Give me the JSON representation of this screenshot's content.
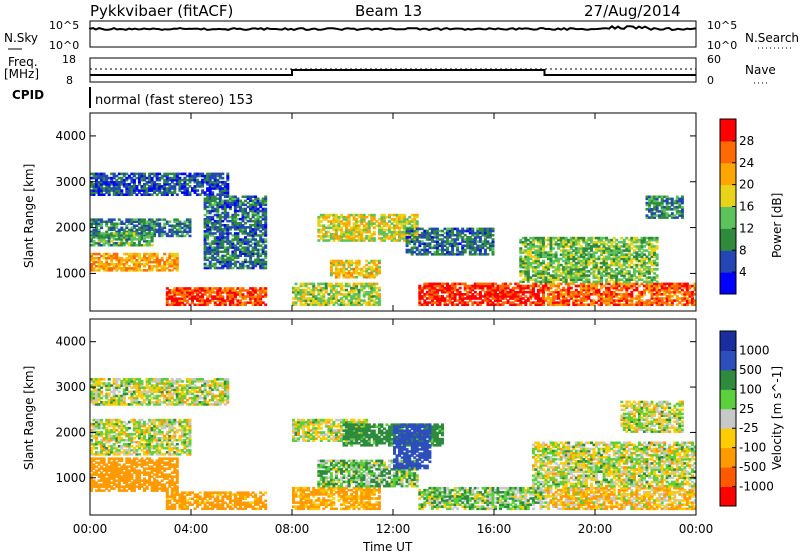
{
  "header": {
    "radar": "Pykkvibaer (fitACF)",
    "beam": "Beam 13",
    "date": "27/Aug/2014"
  },
  "top_panels": {
    "nsky_label": "N.Sky",
    "nsky_ticks": [
      "10^5",
      "10^0"
    ],
    "nsearch_label": "N.Search",
    "nsearch_ticks": [
      "10^5",
      "10^0"
    ],
    "freq_label": "Freq.",
    "freq_unit": "[MHz]",
    "freq_ticks": [
      "18",
      "8"
    ],
    "nave_label": "Nave",
    "nave_ticks": [
      "60",
      "0"
    ],
    "cpid_label": "CPID",
    "cpid_value": "normal (fast stereo) 153"
  },
  "colors": {
    "power": [
      "#0000ff",
      "#2246b4",
      "#2f8a3c",
      "#5cc35c",
      "#e8d21a",
      "#ffa500",
      "#ff6a00",
      "#ff0000"
    ],
    "velocity": [
      "#ff0000",
      "#ff5a00",
      "#ff9a00",
      "#ffcc00",
      "#c8c8c8",
      "#5cd03c",
      "#2e8b3e",
      "#2c4fbc",
      "#1a2ea0"
    ]
  },
  "chart_data": [
    {
      "type": "heatmap",
      "name": "Power panel",
      "xlabel": "Time UT",
      "ylabel": "Slant Range [km]",
      "xlim": [
        0,
        24
      ],
      "ylim": [
        180,
        4500
      ],
      "x_ticks": [
        "00:00",
        "04:00",
        "08:00",
        "12:00",
        "16:00",
        "20:00",
        "00:00"
      ],
      "y_ticks": [
        "1000",
        "2000",
        "3000",
        "4000"
      ],
      "colorbar": {
        "label": "Power [dB]",
        "ticks": [
          "4",
          "8",
          "12",
          "16",
          "20",
          "24",
          "28"
        ],
        "range": [
          0,
          32
        ]
      },
      "regions": [
        {
          "t": [
            0.0,
            5.5
          ],
          "r": [
            2700,
            3200
          ],
          "v": 6
        },
        {
          "t": [
            0.0,
            4.0
          ],
          "r": [
            1800,
            2200
          ],
          "v": 9
        },
        {
          "t": [
            0.0,
            3.5
          ],
          "r": [
            1050,
            1450
          ],
          "v": 22
        },
        {
          "t": [
            0.0,
            2.5
          ],
          "r": [
            1600,
            1900
          ],
          "v": 12
        },
        {
          "t": [
            3.0,
            7.0
          ],
          "r": [
            300,
            700
          ],
          "v": 28
        },
        {
          "t": [
            4.5,
            7.0
          ],
          "r": [
            1100,
            2700
          ],
          "v": 8
        },
        {
          "t": [
            8.0,
            11.5
          ],
          "r": [
            300,
            800
          ],
          "v": 16
        },
        {
          "t": [
            9.0,
            13.0
          ],
          "r": [
            1700,
            2300
          ],
          "v": 18
        },
        {
          "t": [
            9.5,
            11.5
          ],
          "r": [
            900,
            1300
          ],
          "v": 20
        },
        {
          "t": [
            12.5,
            16.0
          ],
          "r": [
            1400,
            2000
          ],
          "v": 8
        },
        {
          "t": [
            13.0,
            18.0
          ],
          "r": [
            300,
            800
          ],
          "v": 29
        },
        {
          "t": [
            18.0,
            24.0
          ],
          "r": [
            300,
            800
          ],
          "v": 26
        },
        {
          "t": [
            17.0,
            22.5
          ],
          "r": [
            800,
            1800
          ],
          "v": 14
        },
        {
          "t": [
            22.0,
            23.5
          ],
          "r": [
            2200,
            2700
          ],
          "v": 10
        }
      ]
    },
    {
      "type": "heatmap",
      "name": "Velocity panel",
      "xlabel": "Time UT",
      "ylabel": "Slant Range [km]",
      "xlim": [
        0,
        24
      ],
      "ylim": [
        180,
        4500
      ],
      "x_ticks": [
        "00:00",
        "04:00",
        "08:00",
        "12:00",
        "16:00",
        "20:00",
        "00:00"
      ],
      "y_ticks": [
        "1000",
        "2000",
        "3000",
        "4000"
      ],
      "colorbar": {
        "label": "Velocity [m s^-1]",
        "ticks": [
          "1000",
          "500",
          "100",
          "25",
          "-25",
          "-100",
          "-500",
          "-1000"
        ],
        "range": [
          -1200,
          1200
        ]
      },
      "regions": [
        {
          "t": [
            0.0,
            5.5
          ],
          "r": [
            2600,
            3200
          ],
          "v": 0
        },
        {
          "t": [
            0.0,
            4.0
          ],
          "r": [
            1500,
            2300
          ],
          "v": 0
        },
        {
          "t": [
            0.0,
            3.5
          ],
          "r": [
            700,
            1450
          ],
          "v": -300
        },
        {
          "t": [
            3.0,
            7.0
          ],
          "r": [
            300,
            700
          ],
          "v": -200
        },
        {
          "t": [
            8.0,
            11.5
          ],
          "r": [
            300,
            800
          ],
          "v": -150
        },
        {
          "t": [
            8.0,
            11.0
          ],
          "r": [
            1800,
            2300
          ],
          "v": 0
        },
        {
          "t": [
            10.0,
            14.0
          ],
          "r": [
            1700,
            2200
          ],
          "v": 200
        },
        {
          "t": [
            9.0,
            13.0
          ],
          "r": [
            800,
            1400
          ],
          "v": 80
        },
        {
          "t": [
            12.0,
            13.5
          ],
          "r": [
            1200,
            2200
          ],
          "v": 800
        },
        {
          "t": [
            13.0,
            18.0
          ],
          "r": [
            300,
            800
          ],
          "v": 60
        },
        {
          "t": [
            18.0,
            24.0
          ],
          "r": [
            300,
            800
          ],
          "v": -80
        },
        {
          "t": [
            17.5,
            24.0
          ],
          "r": [
            800,
            1800
          ],
          "v": 0
        },
        {
          "t": [
            21.0,
            23.5
          ],
          "r": [
            2000,
            2700
          ],
          "v": 0
        }
      ]
    }
  ]
}
